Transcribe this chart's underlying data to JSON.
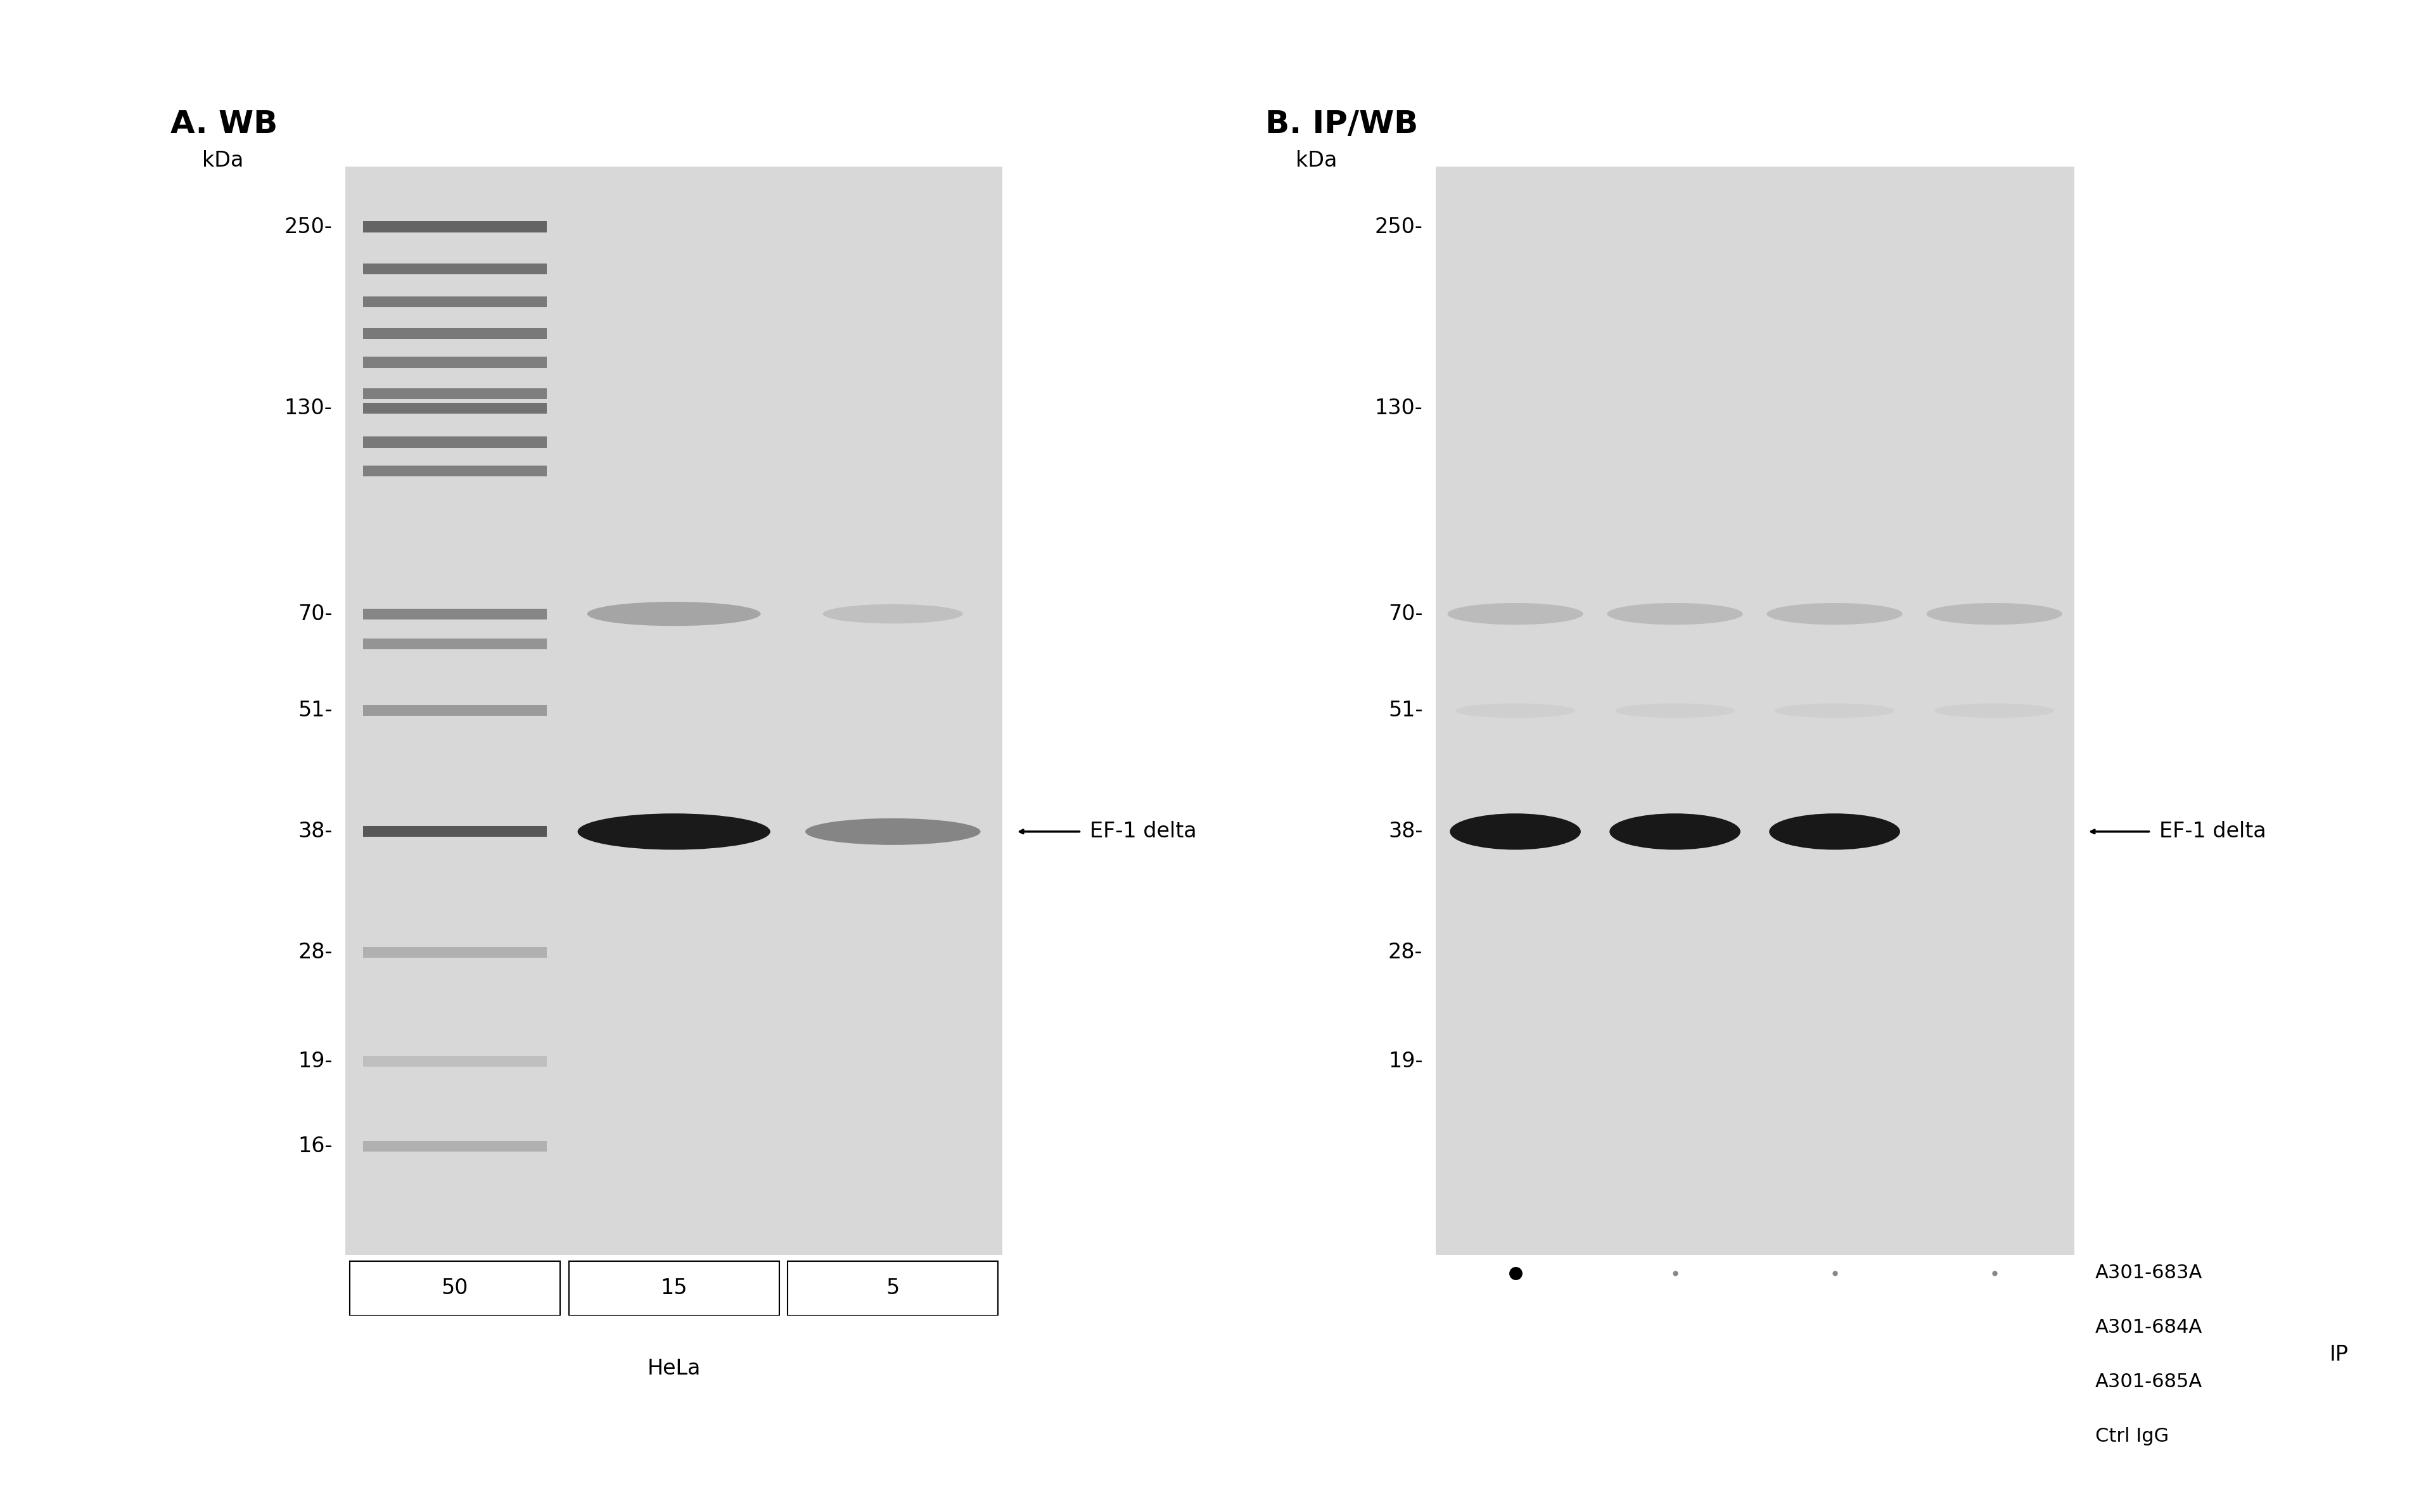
{
  "white_bg": "#ffffff",
  "panel_bg_color": "#d4d4d4",
  "panel_A": {
    "title": "A. WB",
    "kda_label": "kDa",
    "markers": [
      250,
      130,
      70,
      51,
      38,
      28,
      19,
      16
    ],
    "lane_labels": [
      "50",
      "15",
      "5"
    ],
    "sample_label": "HeLa",
    "ef1_delta_label": "EF-1 delta"
  },
  "panel_B": {
    "title": "B. IP/WB",
    "kda_label": "kDa",
    "markers": [
      250,
      130,
      70,
      51,
      38,
      28,
      19
    ],
    "ef1_delta_label": "EF-1 delta",
    "ip_labels": [
      "A301-683A",
      "A301-684A",
      "A301-685A",
      "Ctrl IgG"
    ],
    "dot_pattern": [
      [
        true,
        false,
        false,
        false
      ],
      [
        false,
        true,
        false,
        false
      ],
      [
        false,
        false,
        true,
        false
      ],
      [
        false,
        false,
        false,
        true
      ]
    ]
  }
}
